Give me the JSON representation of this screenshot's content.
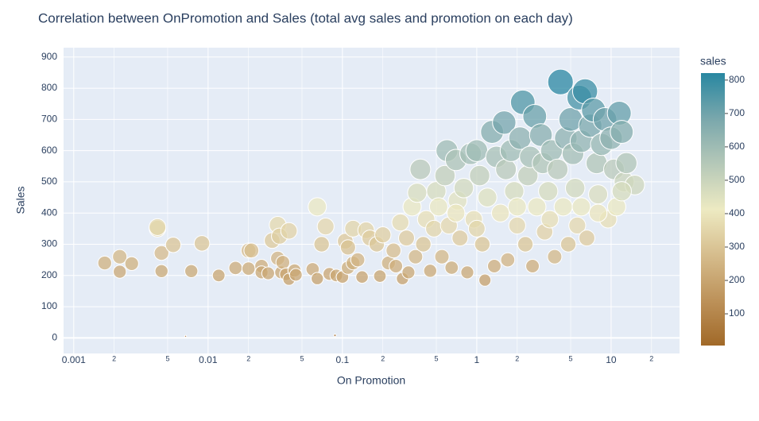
{
  "chart_data": {
    "type": "bubble",
    "title": "Correlation between OnPromotion and Sales (total avg sales and promotion on each day)",
    "x_label": "On Promotion",
    "y_label": "Sales",
    "colorbar_title": "sales",
    "log_x": true,
    "grid": true,
    "xlim": [
      0.00084,
      32.3
    ],
    "ylim": [
      -50,
      930
    ],
    "xticks": [
      0.001,
      {
        "value": 0.002,
        "label": "2"
      },
      {
        "value": 0.005,
        "label": "5"
      },
      0.01,
      {
        "value": 0.02,
        "label": "2"
      },
      {
        "value": 0.05,
        "label": "5"
      },
      0.1,
      {
        "value": 0.2,
        "label": "2"
      },
      {
        "value": 0.5,
        "label": "5"
      },
      1,
      {
        "value": 2,
        "label": "2"
      },
      {
        "value": 5,
        "label": "5"
      },
      10,
      {
        "value": 20,
        "label": "2"
      }
    ],
    "yticks": [
      0,
      100,
      200,
      300,
      400,
      500,
      600,
      700,
      800,
      900
    ],
    "clim": [
      5,
      821
    ],
    "colorbar_ticks": [
      100,
      200,
      300,
      400,
      500,
      600,
      700,
      800
    ],
    "colorscale": [
      "#a16928",
      "#bd925a",
      "#d6bd8d",
      "#edeac2",
      "#b5c8b8",
      "#79a7ac",
      "#2887a1"
    ],
    "series": [
      {
        "name": "sales",
        "x": [
          0.0017,
          0.0022,
          0.0022,
          0.0027,
          0.0042,
          0.0042,
          0.0045,
          0.0045,
          0.0055,
          0.0075,
          0.009,
          0.012,
          0.016,
          0.02,
          0.021,
          0.02,
          0.025,
          0.025,
          0.028,
          0.03,
          0.033,
          0.034,
          0.033,
          0.035,
          0.036,
          0.038,
          0.04,
          0.04,
          0.044,
          0.045,
          0.06,
          0.065,
          0.065,
          0.07,
          0.075,
          0.08,
          0.09,
          0.1,
          0.105,
          0.11,
          0.11,
          0.12,
          0.12,
          0.13,
          0.14,
          0.15,
          0.16,
          0.18,
          0.19,
          0.2,
          0.22,
          0.24,
          0.25,
          0.27,
          0.28,
          0.3,
          0.31,
          0.33,
          0.35,
          0.36,
          0.38,
          0.4,
          0.42,
          0.45,
          0.48,
          0.5,
          0.52,
          0.55,
          0.58,
          0.6,
          0.62,
          0.65,
          0.7,
          0.72,
          0.75,
          0.8,
          0.85,
          0.9,
          0.95,
          1.0,
          1.05,
          1.1,
          1.15,
          1.2,
          1.3,
          1.35,
          1.4,
          1.5,
          1.6,
          1.65,
          1.7,
          1.8,
          1.9,
          2.0,
          2.1,
          2.2,
          2.3,
          2.4,
          2.5,
          2.6,
          2.7,
          2.8,
          3.0,
          3.1,
          3.2,
          3.4,
          3.6,
          3.8,
          4.0,
          4.2,
          4.4,
          4.6,
          4.8,
          5.0,
          5.2,
          5.4,
          5.6,
          5.8,
          6.0,
          6.4,
          6.6,
          7.0,
          7.4,
          7.8,
          8.0,
          8.5,
          9.0,
          9.5,
          10,
          10.5,
          11,
          11.5,
          12,
          12.5,
          13,
          15,
          2.0,
          1.0,
          0.7,
          3.5,
          6,
          8,
          12,
          0.0068,
          0.088
        ],
        "values": [
          240,
          260,
          212,
          238,
          350,
          355,
          272,
          214,
          298,
          214,
          303,
          200,
          224,
          280,
          280,
          222,
          230,
          210,
          207,
          312,
          362,
          326,
          255,
          210,
          242,
          204,
          343,
          188,
          216,
          202,
          220,
          190,
          420,
          300,
          357,
          205,
          200,
          195,
          310,
          290,
          225,
          350,
          240,
          250,
          195,
          345,
          320,
          300,
          198,
          330,
          240,
          280,
          230,
          370,
          190,
          320,
          210,
          420,
          260,
          465,
          540,
          300,
          380,
          215,
          350,
          470,
          420,
          260,
          520,
          600,
          360,
          225,
          570,
          440,
          320,
          480,
          210,
          590,
          380,
          600,
          520,
          300,
          185,
          450,
          660,
          230,
          580,
          400,
          690,
          540,
          250,
          600,
          470,
          360,
          640,
          755,
          300,
          520,
          580,
          230,
          710,
          420,
          650,
          560,
          340,
          470,
          600,
          260,
          540,
          820,
          420,
          640,
          300,
          700,
          590,
          480,
          360,
          770,
          630,
          790,
          320,
          680,
          730,
          560,
          460,
          620,
          700,
          380,
          640,
          540,
          420,
          720,
          660,
          500,
          560,
          490,
          420,
          350,
          400,
          380,
          420,
          400,
          470,
          5,
          8
        ]
      }
    ]
  }
}
